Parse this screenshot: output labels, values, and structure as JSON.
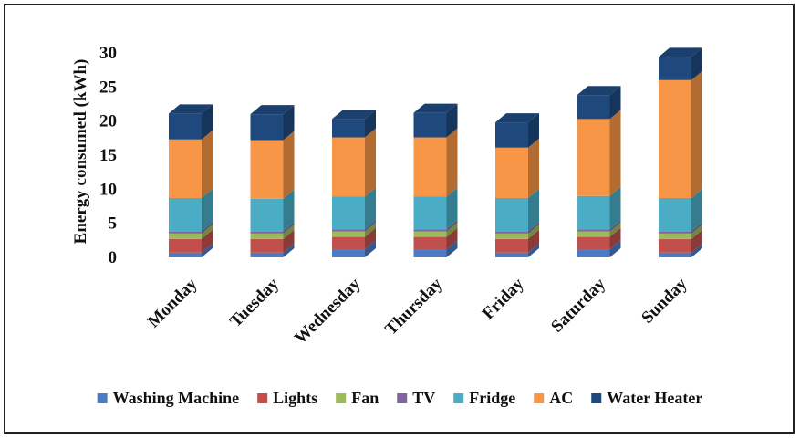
{
  "chart_data": {
    "type": "bar",
    "stacked": true,
    "style": "3d",
    "title": "",
    "xlabel": "",
    "ylabel": "Energy consumed (kWh)",
    "ylim": [
      0,
      30
    ],
    "yticks": [
      0,
      5,
      10,
      15,
      20,
      25,
      30
    ],
    "grid": false,
    "legend_position": "bottom",
    "categories": [
      "Monday",
      "Tuesday",
      "Wednesday",
      "Thursday",
      "Friday",
      "Saturday",
      "Sunday"
    ],
    "series": [
      {
        "name": "Washing Machine",
        "color": "#4a7bc4",
        "values": [
          0.7,
          0.7,
          1.2,
          1.2,
          0.7,
          1.2,
          0.7
        ]
      },
      {
        "name": "Lights",
        "color": "#c0504d",
        "values": [
          2.0,
          2.0,
          1.8,
          1.8,
          2.0,
          1.8,
          2.0
        ]
      },
      {
        "name": "Fan",
        "color": "#9bbb59",
        "values": [
          0.8,
          0.8,
          0.8,
          0.8,
          0.8,
          0.8,
          0.8
        ]
      },
      {
        "name": "TV",
        "color": "#8064a2",
        "values": [
          0.3,
          0.3,
          0.3,
          0.3,
          0.3,
          0.3,
          0.3
        ]
      },
      {
        "name": "Fridge",
        "color": "#4bacc6",
        "values": [
          4.9,
          4.8,
          4.8,
          4.8,
          4.9,
          4.9,
          4.9
        ]
      },
      {
        "name": "AC",
        "color": "#f79646",
        "values": [
          8.6,
          8.6,
          8.7,
          8.7,
          7.4,
          11.3,
          17.3
        ]
      },
      {
        "name": "Water Heater",
        "color": "#1f497d",
        "values": [
          3.8,
          3.8,
          2.7,
          3.6,
          3.7,
          3.5,
          3.4
        ]
      }
    ]
  }
}
